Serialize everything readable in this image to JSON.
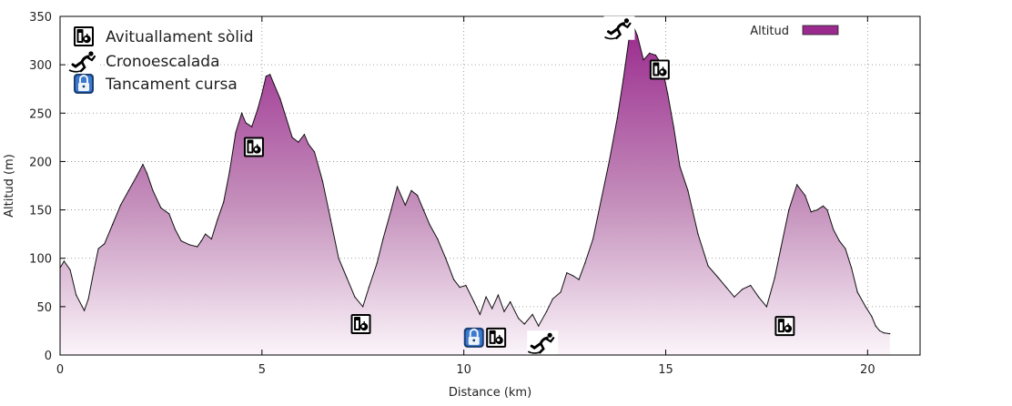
{
  "chart_data": {
    "type": "area",
    "xlabel": "Distance (km)",
    "ylabel": "Altitud   (m)",
    "xlim": [
      0,
      21.3
    ],
    "ylim": [
      0,
      350
    ],
    "xticks": [
      0,
      5,
      10,
      15,
      20
    ],
    "yticks": [
      0,
      50,
      100,
      150,
      200,
      250,
      300,
      350
    ],
    "grid": true,
    "series": [
      {
        "name": "Altitud",
        "color": "#9a2a8e",
        "x": [
          0,
          0.1,
          0.25,
          0.4,
          0.55,
          0.6,
          0.7,
          0.85,
          0.95,
          1.1,
          1.3,
          1.5,
          1.7,
          1.9,
          2.05,
          2.15,
          2.3,
          2.5,
          2.7,
          2.85,
          3.0,
          3.2,
          3.4,
          3.5,
          3.6,
          3.75,
          3.9,
          4.05,
          4.2,
          4.35,
          4.5,
          4.6,
          4.75,
          4.9,
          5.0,
          5.1,
          5.2,
          5.3,
          5.45,
          5.6,
          5.75,
          5.9,
          6.05,
          6.15,
          6.3,
          6.5,
          6.7,
          6.9,
          7.1,
          7.3,
          7.5,
          7.65,
          7.85,
          8.0,
          8.2,
          8.35,
          8.55,
          8.7,
          8.85,
          9.0,
          9.15,
          9.35,
          9.55,
          9.75,
          9.9,
          10.05,
          10.25,
          10.4,
          10.55,
          10.7,
          10.85,
          11.0,
          11.15,
          11.35,
          11.5,
          11.7,
          11.85,
          12.05,
          12.2,
          12.4,
          12.55,
          12.7,
          12.85,
          13.0,
          13.2,
          13.4,
          13.6,
          13.8,
          13.95,
          14.1,
          14.2,
          14.3,
          14.45,
          14.6,
          14.75,
          14.9,
          15.05,
          15.2,
          15.35,
          15.55,
          15.8,
          16.05,
          16.3,
          16.5,
          16.7,
          16.9,
          17.1,
          17.3,
          17.5,
          17.7,
          17.85,
          18.05,
          18.25,
          18.45,
          18.6,
          18.75,
          18.9,
          19.0,
          19.15,
          19.3,
          19.45,
          19.6,
          19.75,
          19.95,
          20.1,
          20.2,
          20.3,
          20.4,
          20.55
        ],
        "values": [
          90,
          97,
          88,
          62,
          50,
          46,
          58,
          90,
          110,
          115,
          135,
          155,
          170,
          185,
          197,
          188,
          170,
          152,
          146,
          130,
          118,
          114,
          112,
          118,
          125,
          120,
          140,
          158,
          190,
          230,
          250,
          240,
          236,
          255,
          270,
          288,
          290,
          280,
          265,
          245,
          225,
          220,
          228,
          218,
          210,
          180,
          140,
          100,
          80,
          60,
          50,
          70,
          95,
          120,
          150,
          174,
          155,
          170,
          165,
          150,
          135,
          120,
          100,
          78,
          70,
          72,
          55,
          42,
          60,
          48,
          62,
          45,
          55,
          38,
          32,
          42,
          30,
          45,
          58,
          65,
          85,
          82,
          78,
          95,
          120,
          160,
          200,
          245,
          285,
          330,
          340,
          330,
          305,
          312,
          310,
          300,
          270,
          235,
          195,
          170,
          125,
          92,
          80,
          70,
          60,
          68,
          72,
          60,
          50,
          80,
          110,
          150,
          176,
          165,
          148,
          150,
          154,
          150,
          130,
          118,
          110,
          90,
          65,
          50,
          40,
          30,
          25,
          23,
          22
        ]
      }
    ],
    "legend": {
      "placement": "top-right",
      "label": "Altitud"
    },
    "icon_legend": [
      {
        "icon": "food-station-icon",
        "label": "Avituallament sòlid"
      },
      {
        "icon": "runner-icon",
        "label": "Cronoescalada"
      },
      {
        "icon": "lock-icon",
        "label": "Tancament cursa"
      }
    ],
    "markers": [
      {
        "icon": "food-station-icon",
        "x": 4.8,
        "y": 215
      },
      {
        "icon": "food-station-icon",
        "x": 7.45,
        "y": 32
      },
      {
        "icon": "lock-icon",
        "x": 10.25,
        "y": 18
      },
      {
        "icon": "food-station-icon",
        "x": 10.8,
        "y": 18
      },
      {
        "icon": "runner-icon",
        "x": 11.95,
        "y": 13
      },
      {
        "icon": "runner-icon",
        "x": 13.85,
        "y": 338
      },
      {
        "icon": "food-station-icon",
        "x": 14.85,
        "y": 295
      },
      {
        "icon": "food-station-icon",
        "x": 17.95,
        "y": 30
      }
    ]
  }
}
